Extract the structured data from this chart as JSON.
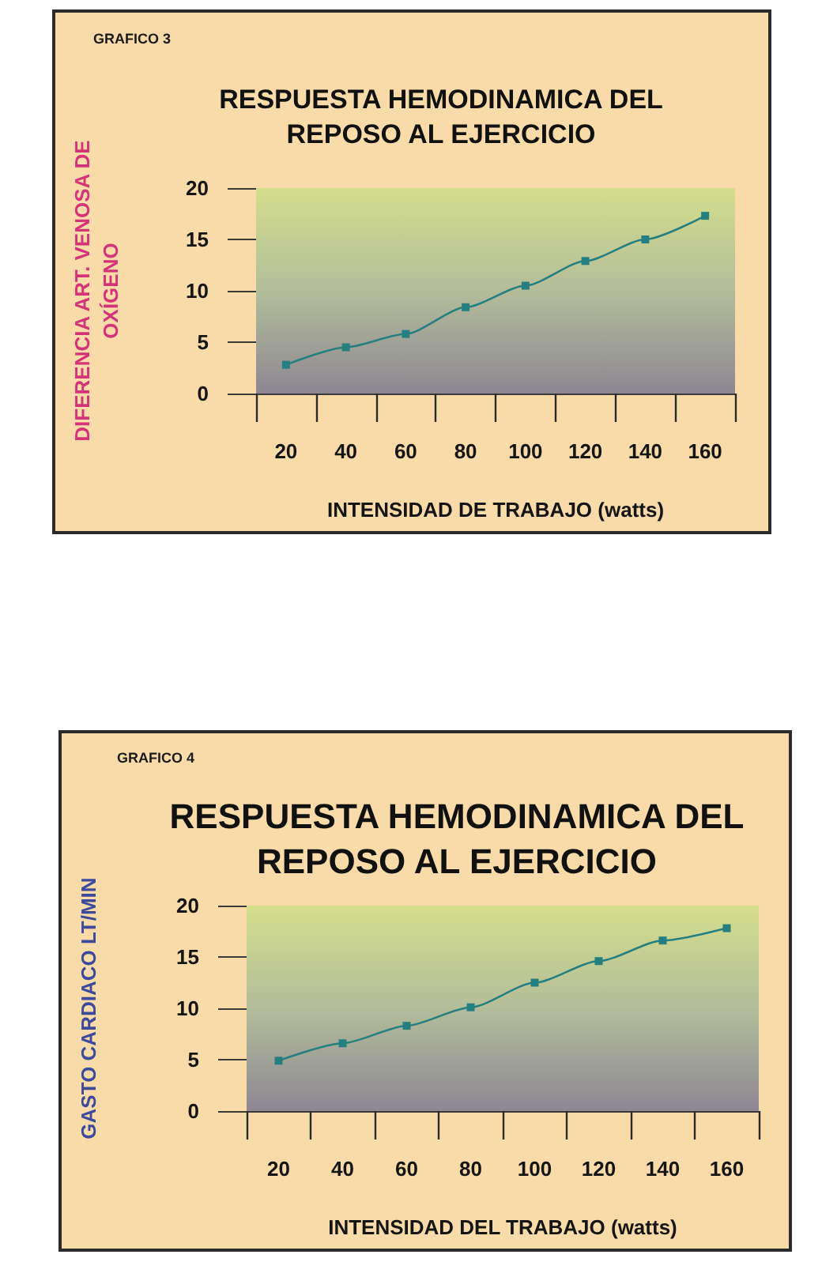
{
  "chart_data": [
    {
      "type": "line",
      "title": "RESPUESTA HEMODINAMICA DEL REPOSO AL EJERCICIO",
      "xlabel": "INTENSIDAD DE TRABAJO (watts)",
      "ylabel": "DIFERENCIA ART. VENOSA DE OXÍGENO",
      "annotations": [
        "GRAFICO 3"
      ],
      "categories": [
        "20",
        "40",
        "60",
        "80",
        "100",
        "120",
        "140",
        "160"
      ],
      "values": [
        2.8,
        4.5,
        5.8,
        8.4,
        10.5,
        12.9,
        15.0,
        17.3
      ],
      "color": "#257f80",
      "ylim": [
        0,
        20
      ],
      "yticks": [
        0,
        5,
        10,
        15,
        20
      ],
      "grid": false,
      "marker": "square",
      "line_style": "solid"
    },
    {
      "type": "line",
      "title": "RESPUESTA HEMODINAMICA DEL REPOSO AL EJERCICIO",
      "xlabel": "INTENSIDAD DEL TRABAJO (watts)",
      "ylabel": "GASTO CARDIACO LT/MIN",
      "annotations": [
        "GRAFICO 4"
      ],
      "categories": [
        "20",
        "40",
        "60",
        "80",
        "100",
        "120",
        "140",
        "160"
      ],
      "values": [
        4.9,
        6.6,
        8.3,
        10.1,
        12.5,
        14.6,
        16.6,
        17.8
      ],
      "color": "#257f80",
      "ylim": [
        0,
        20
      ],
      "yticks": [
        0,
        5,
        10,
        15,
        20
      ],
      "grid": false,
      "marker": "square",
      "line_style": "solid"
    }
  ]
}
